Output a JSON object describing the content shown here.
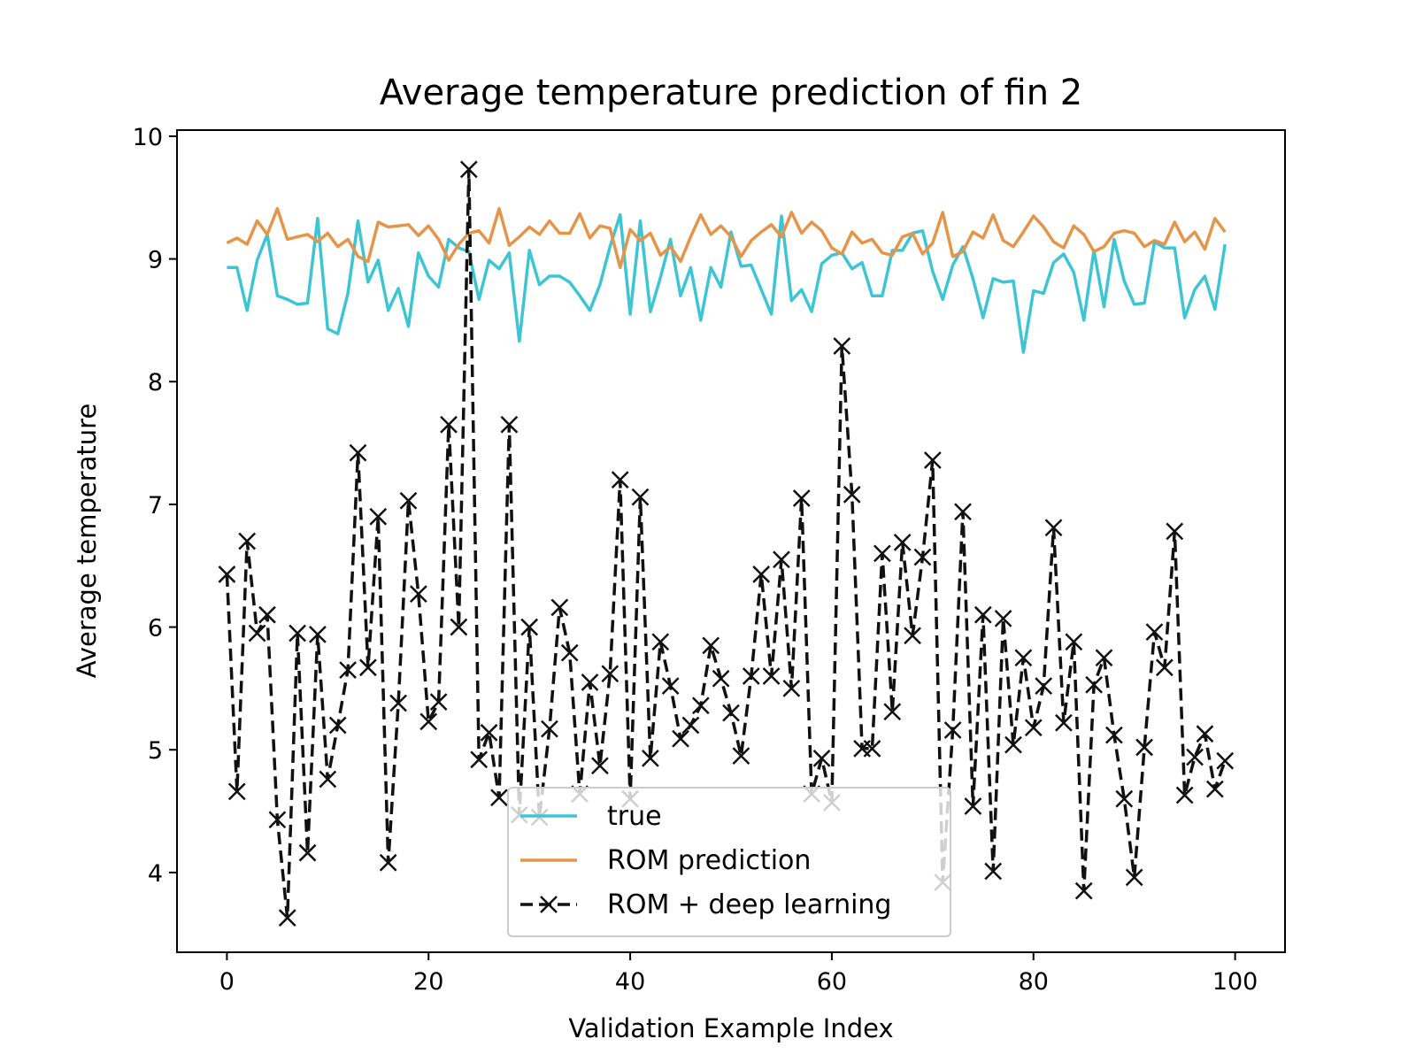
{
  "chart_data": {
    "type": "line",
    "title": "Average temperature prediction of fin 2",
    "xlabel": "Validation Example Index",
    "ylabel": "Average temperature",
    "xlim": [
      -4.95,
      104.95
    ],
    "ylim": [
      3.35,
      10.05
    ],
    "xticks": [
      0,
      20,
      40,
      60,
      80,
      100
    ],
    "yticks": [
      4,
      5,
      6,
      7,
      8,
      9,
      10
    ],
    "grid": false,
    "legend_position": "lower-center",
    "x": [
      0,
      1,
      2,
      3,
      4,
      5,
      6,
      7,
      8,
      9,
      10,
      11,
      12,
      13,
      14,
      15,
      16,
      17,
      18,
      19,
      20,
      21,
      22,
      23,
      24,
      25,
      26,
      27,
      28,
      29,
      30,
      31,
      32,
      33,
      34,
      35,
      36,
      37,
      38,
      39,
      40,
      41,
      42,
      43,
      44,
      45,
      46,
      47,
      48,
      49,
      50,
      51,
      52,
      53,
      54,
      55,
      56,
      57,
      58,
      59,
      60,
      61,
      62,
      63,
      64,
      65,
      66,
      67,
      68,
      69,
      70,
      71,
      72,
      73,
      74,
      75,
      76,
      77,
      78,
      79,
      80,
      81,
      82,
      83,
      84,
      85,
      86,
      87,
      88,
      89,
      90,
      91,
      92,
      93,
      94,
      95,
      96,
      97,
      98,
      99
    ],
    "series": [
      {
        "name": "true",
        "color": "#3ec5d3",
        "style": "solid",
        "marker": "none",
        "values": [
          8.93,
          8.93,
          8.58,
          8.99,
          9.2,
          8.7,
          8.67,
          8.63,
          8.64,
          9.33,
          8.43,
          8.39,
          8.72,
          9.31,
          8.81,
          8.99,
          8.58,
          8.76,
          8.45,
          9.05,
          8.86,
          8.77,
          9.16,
          9.09,
          9.06,
          8.67,
          8.99,
          8.92,
          9.05,
          8.33,
          9.07,
          8.79,
          8.86,
          8.86,
          8.81,
          8.7,
          8.58,
          8.79,
          9.1,
          9.36,
          8.55,
          9.31,
          8.57,
          8.85,
          9.16,
          8.7,
          8.93,
          8.5,
          8.93,
          8.77,
          9.22,
          8.94,
          8.95,
          8.75,
          8.55,
          9.35,
          8.66,
          8.75,
          8.57,
          8.96,
          9.03,
          9.05,
          8.92,
          8.97,
          8.7,
          8.7,
          9.07,
          9.07,
          9.21,
          9.23,
          8.9,
          8.67,
          8.95,
          9.1,
          8.84,
          8.52,
          8.84,
          8.81,
          8.82,
          8.24,
          8.74,
          8.72,
          8.97,
          9.04,
          8.89,
          8.5,
          9.07,
          8.61,
          9.16,
          8.82,
          8.63,
          8.64,
          9.14,
          9.09,
          9.09,
          8.52,
          8.75,
          8.86,
          8.59,
          9.12
        ]
      },
      {
        "name": "ROM prediction",
        "color": "#e5954a",
        "style": "solid",
        "marker": "none",
        "values": [
          9.13,
          9.17,
          9.12,
          9.31,
          9.2,
          9.41,
          9.16,
          9.18,
          9.2,
          9.14,
          9.21,
          9.1,
          9.16,
          9.02,
          8.98,
          9.3,
          9.26,
          9.27,
          9.28,
          9.19,
          9.27,
          9.16,
          8.99,
          9.12,
          9.21,
          9.23,
          9.13,
          9.41,
          9.11,
          9.18,
          9.26,
          9.2,
          9.31,
          9.21,
          9.21,
          9.37,
          9.17,
          9.27,
          9.25,
          8.93,
          9.24,
          9.15,
          9.21,
          9.03,
          9.1,
          8.98,
          9.18,
          9.36,
          9.2,
          9.27,
          9.18,
          9.02,
          9.15,
          9.22,
          9.28,
          9.18,
          9.38,
          9.21,
          9.3,
          9.23,
          9.09,
          9.04,
          9.22,
          9.13,
          9.16,
          9.05,
          9.03,
          9.18,
          9.21,
          9.04,
          9.13,
          9.38,
          9.02,
          9.06,
          9.22,
          9.17,
          9.36,
          9.15,
          9.1,
          9.22,
          9.35,
          9.26,
          9.14,
          9.09,
          9.27,
          9.2,
          9.06,
          9.1,
          9.21,
          9.23,
          9.21,
          9.1,
          9.15,
          9.12,
          9.3,
          9.14,
          9.22,
          9.08,
          9.33,
          9.22
        ]
      },
      {
        "name": "ROM + deep learning",
        "color": "#111111",
        "style": "dashed",
        "marker": "x",
        "values": [
          6.43,
          4.66,
          6.7,
          5.95,
          6.1,
          4.43,
          3.63,
          5.95,
          4.16,
          5.94,
          4.76,
          5.2,
          5.65,
          7.42,
          5.67,
          6.9,
          4.08,
          5.38,
          7.03,
          6.27,
          5.23,
          5.39,
          7.65,
          6.0,
          9.73,
          4.92,
          5.14,
          4.61,
          7.65,
          4.47,
          6.0,
          4.45,
          5.17,
          6.16,
          5.79,
          4.64,
          5.55,
          4.87,
          5.62,
          7.2,
          4.6,
          7.06,
          4.93,
          5.88,
          5.52,
          5.09,
          5.2,
          5.36,
          5.85,
          5.58,
          5.3,
          4.95,
          5.6,
          6.43,
          5.6,
          6.55,
          5.5,
          7.05,
          4.64,
          4.93,
          4.57,
          8.29,
          7.08,
          5.01,
          5.01,
          6.6,
          5.31,
          6.69,
          5.93,
          6.57,
          7.36,
          3.92,
          5.16,
          6.94,
          4.54,
          6.1,
          4.01,
          6.07,
          5.04,
          5.75,
          5.18,
          5.52,
          6.81,
          5.22,
          5.88,
          3.85,
          5.53,
          5.75,
          5.12,
          4.6,
          3.96,
          5.02,
          5.96,
          5.67,
          6.78,
          4.63,
          4.94,
          5.13,
          4.68,
          4.91
        ]
      }
    ]
  }
}
